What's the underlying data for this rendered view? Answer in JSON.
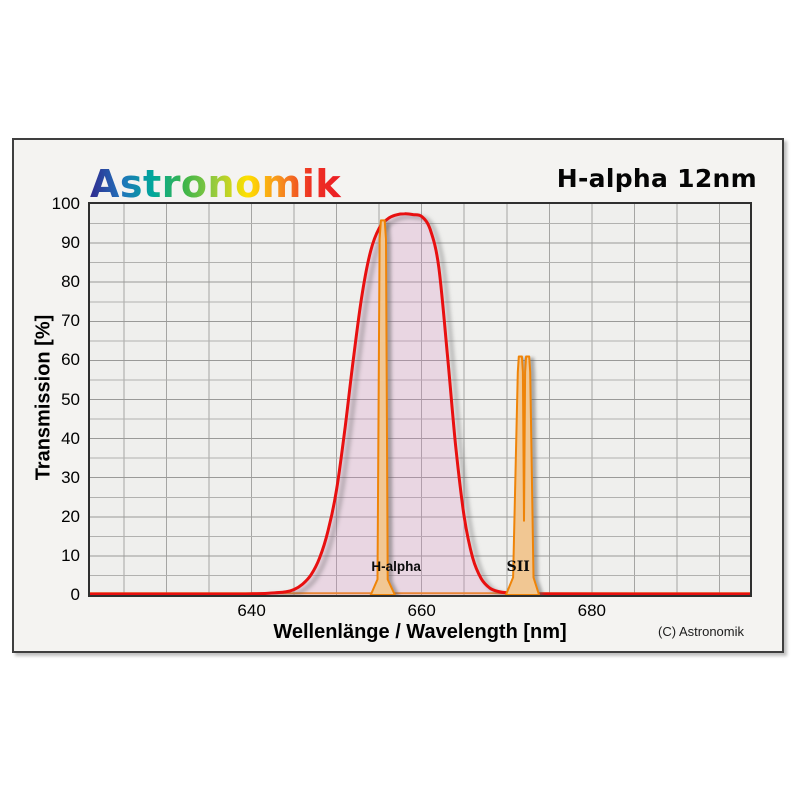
{
  "header": {
    "logo": "Astronomik",
    "logo_colors": [
      "#312a8e",
      "#2073bb",
      "#00a79b",
      "#3cb54a",
      "#9acc3c",
      "#ffe000",
      "#f7941e",
      "#ee3424",
      "#ec1c24"
    ],
    "title": "H-alpha 12nm"
  },
  "chart_data": {
    "type": "line",
    "title": "H-alpha 12nm",
    "xlabel": "Wellenlänge / Wavelength [nm]",
    "ylabel": "Transmission [%]",
    "xlim": [
      621,
      698.6
    ],
    "ylim": [
      0,
      100
    ],
    "x_ticks": [
      640,
      660,
      680
    ],
    "x_grid_step": 5,
    "y_ticks": [
      0,
      10,
      20,
      30,
      40,
      50,
      60,
      70,
      80,
      90,
      100
    ],
    "y_grid_step": 5,
    "grid": "on",
    "legend": "none",
    "colors": {
      "plot_bg": "#efefed",
      "panel_bg": "#f4f3f1",
      "curve": "#e81010",
      "curve_fill": "rgba(215,140,195,0.25)",
      "emission_stroke": "#ef8408",
      "emission_fill": "#f1c793"
    },
    "series": [
      {
        "name": "filter-transmission-curve",
        "description": "H-alpha 12nm filter transmission, FWHM ~12nm centered ~657nm, peak ~97.5%",
        "points": [
          [
            621,
            0.25
          ],
          [
            636,
            0.25
          ],
          [
            640,
            0.3
          ],
          [
            642,
            0.45
          ],
          [
            644,
            0.8
          ],
          [
            645,
            1.4
          ],
          [
            646,
            2.8
          ],
          [
            647,
            5.2
          ],
          [
            648,
            9.5
          ],
          [
            649,
            16.5
          ],
          [
            650,
            27
          ],
          [
            651,
            43
          ],
          [
            652,
            61
          ],
          [
            653,
            77
          ],
          [
            654,
            88
          ],
          [
            655,
            93.8
          ],
          [
            656,
            96.2
          ],
          [
            657,
            97.2
          ],
          [
            658,
            97.5
          ],
          [
            659,
            97.3
          ],
          [
            660,
            96.8
          ],
          [
            661,
            93.5
          ],
          [
            662,
            84
          ],
          [
            663,
            62
          ],
          [
            664,
            38
          ],
          [
            665,
            20
          ],
          [
            666,
            9.5
          ],
          [
            667,
            4.2
          ],
          [
            668,
            1.8
          ],
          [
            669,
            0.9
          ],
          [
            670,
            0.55
          ],
          [
            672,
            0.35
          ],
          [
            676,
            0.28
          ],
          [
            698.6,
            0.25
          ]
        ]
      },
      {
        "name": "h-alpha-emission-line",
        "description": "H-alpha emission line ~656nm, peak ~96%",
        "peak_nm": 655.4,
        "peak_percent": 96,
        "outline": [
          [
            654.0,
            0
          ],
          [
            654.8,
            4
          ],
          [
            655.05,
            91
          ],
          [
            655.2,
            95.8
          ],
          [
            655.65,
            95.8
          ],
          [
            655.8,
            91
          ],
          [
            656.0,
            4
          ],
          [
            656.85,
            0
          ]
        ]
      },
      {
        "name": "sii-emission-doublet",
        "description": "SII emission doublet ~671.6/673nm, peaks ~61%",
        "peak_nm": 672.0,
        "peak_percent": 61,
        "outline": [
          [
            669.9,
            0
          ],
          [
            670.75,
            4.5
          ],
          [
            671.3,
            57
          ],
          [
            671.42,
            61
          ],
          [
            671.78,
            61
          ],
          [
            671.9,
            57
          ],
          [
            672.03,
            19
          ],
          [
            672.16,
            57
          ],
          [
            672.28,
            61
          ],
          [
            672.64,
            61
          ],
          [
            672.76,
            57
          ],
          [
            673.15,
            4.5
          ],
          [
            673.8,
            0
          ]
        ]
      }
    ],
    "baseline": {
      "y": 0.45
    },
    "annotations": [
      {
        "text": "H-alpha",
        "x": 657.0,
        "y": 7.4,
        "font": "sans-bold"
      },
      {
        "text": "SII",
        "x": 671.35,
        "y": 7.4,
        "font": "serif-bold"
      }
    ],
    "copyright": "(C) Astronomik"
  }
}
